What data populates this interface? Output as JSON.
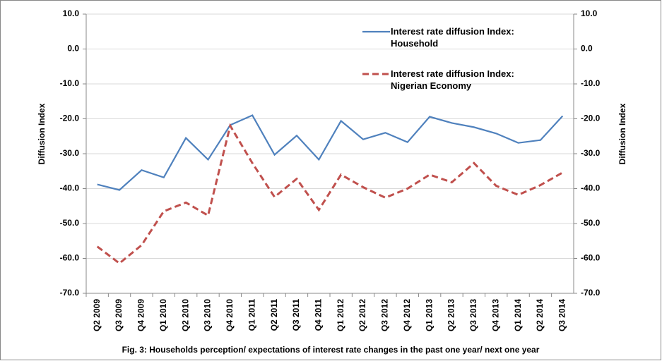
{
  "chart_data": {
    "type": "line",
    "caption": "Fig. 3:  Households  perception/ expectations of interest rate changes in the past one year/ next one year",
    "y_label": "Diffusion Index",
    "y2_label": "Diffusion Index",
    "categories": [
      "Q2 2009",
      "Q3 2009",
      "Q4 2009",
      "Q1 2010",
      "Q2 2010",
      "Q3 2010",
      "Q4 2010",
      "Q1 2011",
      "Q2 2011",
      "Q3 2011",
      "Q4 2011",
      "Q1 2012",
      "Q2 2012",
      "Q3 2012",
      "Q4 2012",
      "Q1 2013",
      "Q2 2013",
      "Q3 2013",
      "Q4 2013",
      "Q1 2014",
      "Q2 2014",
      "Q3 2014"
    ],
    "series": [
      {
        "name": "Interest rate diffusion Index: Household",
        "color": "#4f81bd",
        "dash": false,
        "values": [
          -38.8,
          -40.4,
          -34.7,
          -36.8,
          -25.5,
          -31.7,
          -21.8,
          -19.0,
          -30.3,
          -24.8,
          -31.7,
          -20.6,
          -25.9,
          -24.0,
          -26.7,
          -19.4,
          -21.2,
          -22.4,
          -24.2,
          -26.9,
          -26.1,
          -19.2
        ]
      },
      {
        "name": "Interest rate diffusion Index: Nigerian Economy",
        "color": "#c0504d",
        "dash": true,
        "values": [
          -56.6,
          -61.4,
          -56.2,
          -46.5,
          -44.0,
          -47.7,
          -22.0,
          -32.7,
          -42.4,
          -37.2,
          -46.1,
          -36.0,
          -39.6,
          -42.6,
          -40.0,
          -36.0,
          -38.2,
          -32.7,
          -39.2,
          -41.8,
          -39.0,
          -35.4
        ]
      }
    ],
    "ylim": [
      -70,
      10
    ],
    "yticks": [
      {
        "value": 10,
        "label": "10.0"
      },
      {
        "value": 0,
        "label": "0.0"
      },
      {
        "value": -10,
        "label": "-10.0"
      },
      {
        "value": -20,
        "label": "-20.0"
      },
      {
        "value": -30,
        "label": "-30.0"
      },
      {
        "value": -40,
        "label": "-40.0"
      },
      {
        "value": -50,
        "label": "-50.0"
      },
      {
        "value": -60,
        "label": "-60.0"
      },
      {
        "value": -70,
        "label": "-70.0"
      }
    ],
    "y2lim": [
      -70,
      10
    ],
    "y2ticks": [
      {
        "value": 10,
        "label": "10.0"
      },
      {
        "value": 0,
        "label": "0.0"
      },
      {
        "value": -10,
        "label": "-10.0"
      },
      {
        "value": -20,
        "label": "-20.0"
      },
      {
        "value": -30,
        "label": "-30.0"
      },
      {
        "value": -40,
        "label": "-40.0"
      },
      {
        "value": -50,
        "label": "-50.0"
      },
      {
        "value": -60,
        "label": "-60.0"
      },
      {
        "value": -70,
        "label": "-70.0"
      }
    ],
    "grid": true
  }
}
